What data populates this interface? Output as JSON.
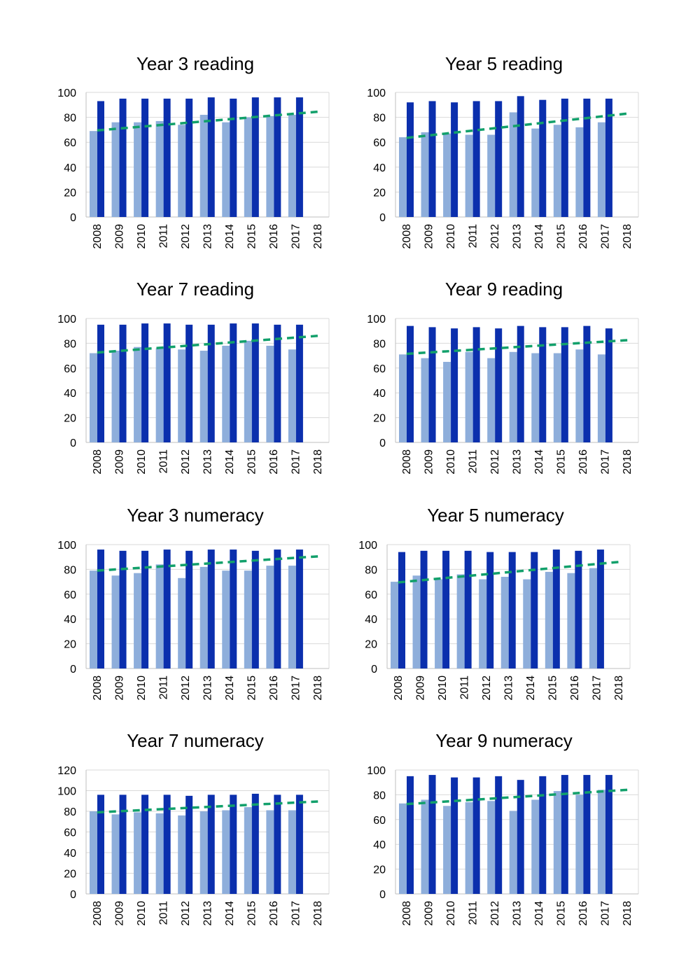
{
  "colors": {
    "bar_light": "#8eaedb",
    "bar_dark": "#0b2fad",
    "trend": "#12a06b",
    "grid": "#d9d9d9",
    "axis": "#bfbfbf",
    "text": "#000000"
  },
  "chart_data": [
    {
      "type": "bar",
      "title": "Year 3 reading",
      "categories": [
        "2008",
        "2009",
        "2010",
        "2011",
        "2012",
        "2013",
        "2014",
        "2015",
        "2016",
        "2017",
        "2018"
      ],
      "ylim": [
        0,
        100
      ],
      "yticks": [
        0,
        20,
        40,
        60,
        80,
        100
      ],
      "grid": true,
      "series": [
        {
          "values": [
            69,
            76,
            76,
            77,
            74,
            82,
            76,
            80,
            81,
            82,
            null
          ]
        },
        {
          "values": [
            93,
            95,
            95,
            95,
            95,
            96,
            95,
            96,
            96,
            96,
            null
          ]
        }
      ],
      "trendline": [
        69.5,
        84.5
      ]
    },
    {
      "type": "bar",
      "title": "Year 5 reading",
      "categories": [
        "2008",
        "2009",
        "2010",
        "2011",
        "2012",
        "2013",
        "2014",
        "2015",
        "2016",
        "2017",
        "2018"
      ],
      "ylim": [
        0,
        100
      ],
      "yticks": [
        0,
        20,
        40,
        60,
        80,
        100
      ],
      "grid": true,
      "series": [
        {
          "values": [
            64,
            68,
            67,
            66,
            66,
            84,
            71,
            74,
            72,
            76,
            null
          ]
        },
        {
          "values": [
            92,
            93,
            92,
            93,
            93,
            97,
            94,
            95,
            95,
            95,
            null
          ]
        }
      ],
      "trendline": [
        63.5,
        83
      ]
    },
    {
      "type": "bar",
      "title": "Year 7 reading",
      "categories": [
        "2008",
        "2009",
        "2010",
        "2011",
        "2012",
        "2013",
        "2014",
        "2015",
        "2016",
        "2017",
        "2018"
      ],
      "ylim": [
        0,
        100
      ],
      "yticks": [
        0,
        20,
        40,
        60,
        80,
        100
      ],
      "grid": true,
      "series": [
        {
          "values": [
            72,
            74,
            77,
            76,
            75,
            74,
            78,
            82,
            78,
            75,
            null
          ]
        },
        {
          "values": [
            95,
            95,
            96,
            96,
            95,
            95,
            96,
            96,
            95,
            95,
            null
          ]
        }
      ],
      "trendline": [
        72.5,
        86
      ]
    },
    {
      "type": "bar",
      "title": "Year 9 reading",
      "categories": [
        "2008",
        "2009",
        "2010",
        "2011",
        "2012",
        "2013",
        "2014",
        "2015",
        "2016",
        "2017",
        "2018"
      ],
      "ylim": [
        0,
        100
      ],
      "yticks": [
        0,
        20,
        40,
        60,
        80,
        100
      ],
      "grid": true,
      "series": [
        {
          "values": [
            71,
            68,
            65,
            73,
            68,
            73,
            72,
            72,
            75,
            71,
            null
          ]
        },
        {
          "values": [
            94,
            93,
            92,
            93,
            92,
            94,
            93,
            93,
            94,
            92,
            null
          ]
        }
      ],
      "trendline": [
        71.5,
        82.5
      ]
    },
    {
      "type": "bar",
      "title": "Year 3 numeracy",
      "categories": [
        "2008",
        "2009",
        "2010",
        "2011",
        "2012",
        "2013",
        "2014",
        "2015",
        "2016",
        "2017",
        "2018"
      ],
      "ylim": [
        0,
        100
      ],
      "yticks": [
        0,
        20,
        40,
        60,
        80,
        100
      ],
      "grid": true,
      "series": [
        {
          "values": [
            79,
            75,
            77,
            84,
            73,
            82,
            79,
            79,
            83,
            83,
            null
          ]
        },
        {
          "values": [
            96,
            95,
            95,
            96,
            95,
            96,
            96,
            95,
            96,
            96,
            null
          ]
        }
      ],
      "trendline": [
        79,
        90.5
      ]
    },
    {
      "type": "bar",
      "title": "Year 5 numeracy",
      "categories": [
        "2008",
        "2009",
        "2010",
        "2011",
        "2012",
        "2013",
        "2014",
        "2015",
        "2016",
        "2017",
        "2018"
      ],
      "ylim": [
        0,
        100
      ],
      "yticks": [
        0,
        20,
        40,
        60,
        80,
        100
      ],
      "grid": true,
      "series": [
        {
          "values": [
            70,
            75,
            72,
            76,
            72,
            74,
            72,
            78,
            77,
            81,
            null
          ]
        },
        {
          "values": [
            94,
            95,
            95,
            95,
            94,
            94,
            94,
            96,
            95,
            96,
            null
          ]
        }
      ],
      "trendline": [
        69.5,
        86
      ]
    },
    {
      "type": "bar",
      "title": "Year 7 numeracy",
      "categories": [
        "2008",
        "2009",
        "2010",
        "2011",
        "2012",
        "2013",
        "2014",
        "2015",
        "2016",
        "2017",
        "2018"
      ],
      "ylim": [
        0,
        120
      ],
      "yticks": [
        0,
        20,
        40,
        60,
        80,
        100,
        120
      ],
      "grid": true,
      "series": [
        {
          "values": [
            80,
            77,
            79,
            78,
            76,
            80,
            81,
            84,
            81,
            81,
            null
          ]
        },
        {
          "values": [
            96,
            96,
            96,
            96,
            95,
            96,
            96,
            97,
            96,
            96,
            null
          ]
        }
      ],
      "trendline": [
        79,
        89.5
      ]
    },
    {
      "type": "bar",
      "title": "Year 9 numeracy",
      "categories": [
        "2008",
        "2009",
        "2010",
        "2011",
        "2012",
        "2013",
        "2014",
        "2015",
        "2016",
        "2017",
        "2018"
      ],
      "ylim": [
        0,
        100
      ],
      "yticks": [
        0,
        20,
        40,
        60,
        80,
        100
      ],
      "grid": true,
      "series": [
        {
          "values": [
            73,
            76,
            71,
            74,
            75,
            67,
            76,
            83,
            80,
            84,
            null
          ]
        },
        {
          "values": [
            95,
            96,
            94,
            94,
            95,
            92,
            95,
            96,
            96,
            96,
            null
          ]
        }
      ],
      "trendline": [
        72.5,
        84
      ]
    }
  ]
}
